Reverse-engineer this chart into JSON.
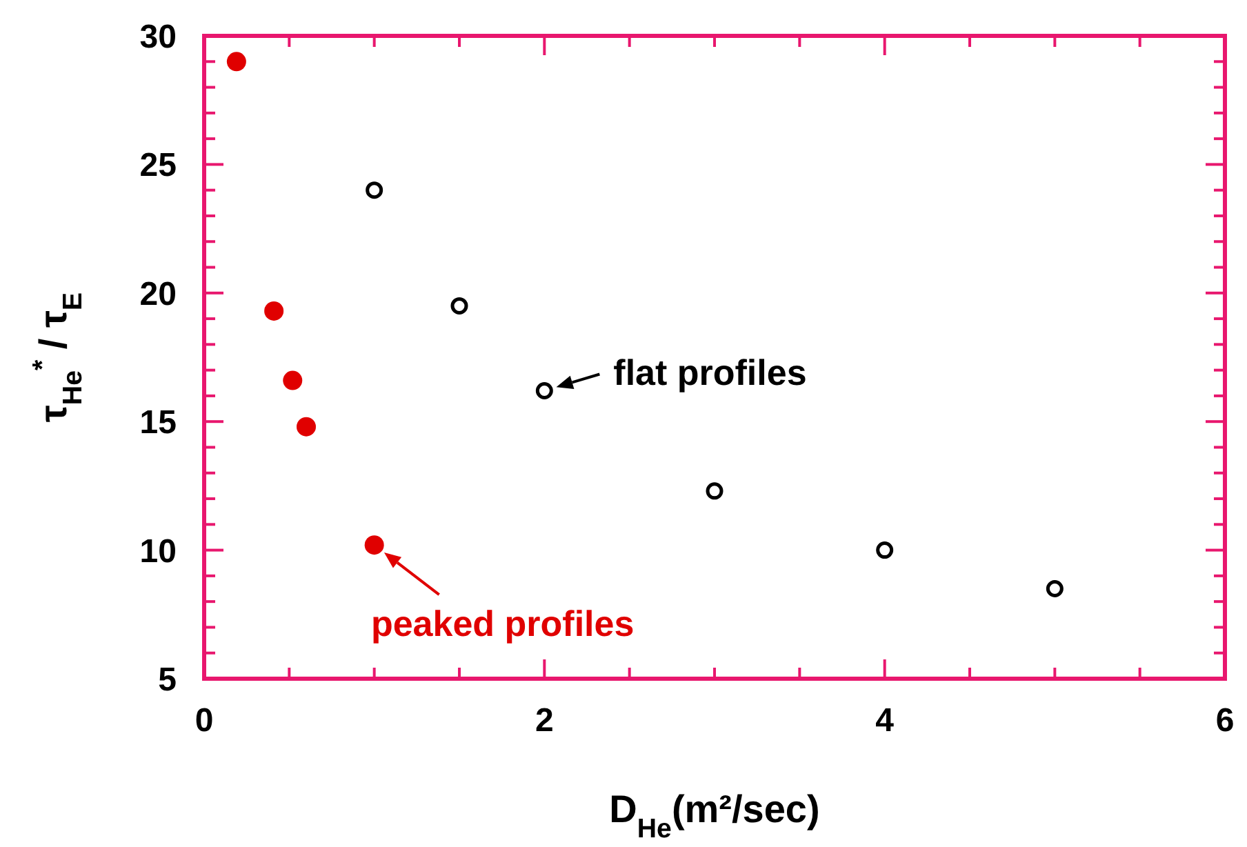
{
  "chart_data": {
    "type": "scatter",
    "xlabel": "D$_{He}$(m²/sec)",
    "ylabel": "τ$_{He}$$^{*}$ / τ$_{E}$",
    "series": [
      {
        "color": "#e00000",
        "x": [
          0.19,
          0.41,
          0.52,
          0.6,
          1.0
        ],
        "values": [
          29.0,
          19.3,
          16.6,
          14.8,
          10.2
        ]
      },
      {
        "color": "#000000",
        "x": [
          1.0,
          1.5,
          2.0,
          3.0,
          4.0,
          5.0
        ],
        "values": [
          24.0,
          19.5,
          16.2,
          12.3,
          10.0,
          8.5
        ]
      }
    ],
    "xlim": [
      0,
      6
    ],
    "ylim": [
      5,
      30
    ],
    "xticks": [
      0,
      {
        "value": 0.5,
        "label": null
      },
      {
        "value": 1,
        "label": null
      },
      {
        "value": 1.5,
        "label": null
      },
      2,
      {
        "value": 2.5,
        "label": null
      },
      {
        "value": 3,
        "label": null
      },
      {
        "value": 3.5,
        "label": null
      },
      4,
      {
        "value": 4.5,
        "label": null
      },
      {
        "value": 5,
        "label": null
      },
      {
        "value": 5.5,
        "label": null
      },
      6
    ],
    "yticks": [
      5,
      {
        "value": 6,
        "label": null
      },
      {
        "value": 7,
        "label": null
      },
      {
        "value": 8,
        "label": null
      },
      {
        "value": 9,
        "label": null
      },
      10,
      {
        "value": 11,
        "label": null
      },
      {
        "value": 12,
        "label": null
      },
      {
        "value": 13,
        "label": null
      },
      {
        "value": 14,
        "label": null
      },
      15,
      {
        "value": 16,
        "label": null
      },
      {
        "value": 17,
        "label": null
      },
      {
        "value": 18,
        "label": null
      },
      {
        "value": 19,
        "label": null
      },
      20,
      {
        "value": 21,
        "label": null
      },
      {
        "value": 22,
        "label": null
      },
      {
        "value": 23,
        "label": null
      },
      {
        "value": 24,
        "label": null
      },
      25,
      {
        "value": 26,
        "label": null
      },
      {
        "value": 27,
        "label": null
      },
      {
        "value": 28,
        "label": null
      },
      {
        "value": 29,
        "label": null
      },
      30
    ],
    "grid": false,
    "legend": false,
    "marker": "circle",
    "annotations": [
      {
        "text": "peaked profiles",
        "x": 1.0,
        "y": 10.2
      },
      {
        "text": "flat profiles",
        "x": 2.0,
        "y": 16.2
      }
    ]
  }
}
